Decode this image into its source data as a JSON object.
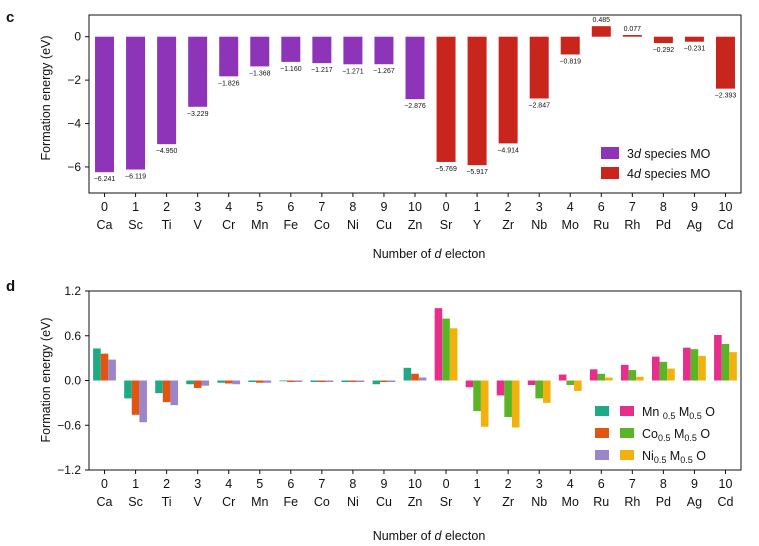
{
  "chart_data": [
    {
      "panel_label": "c",
      "type": "bar",
      "ylabel": "Formation energy (eV)",
      "xlabel_parts": [
        "Number of ",
        "d",
        " electon"
      ],
      "ylim": [
        -7.2,
        1.0
      ],
      "yticks": [
        0,
        -2,
        -4,
        -6
      ],
      "ytick_labels": [
        "0",
        "−2",
        "−4",
        "−6"
      ],
      "categories": [
        "Ca",
        "Sc",
        "Ti",
        "V",
        "Cr",
        "Mn",
        "Fe",
        "Co",
        "Ni",
        "Cu",
        "Zn",
        "Sr",
        "Y",
        "Zr",
        "Nb",
        "Mo",
        "Ru",
        "Rh",
        "Pd",
        "Ag",
        "Cd"
      ],
      "d_electrons": [
        "0",
        "1",
        "2",
        "3",
        "4",
        "5",
        "6",
        "7",
        "8",
        "9",
        "10",
        "0",
        "1",
        "2",
        "3",
        "4",
        "6",
        "7",
        "8",
        "9",
        "10"
      ],
      "values": [
        -6.241,
        -6.119,
        -4.95,
        -3.229,
        -1.826,
        -1.368,
        -1.16,
        -1.217,
        -1.271,
        -1.267,
        -2.876,
        -5.769,
        -5.917,
        -4.914,
        -2.847,
        -0.819,
        0.485,
        0.077,
        -0.292,
        -0.231,
        -2.393
      ],
      "value_labels": [
        "−6.241",
        "−6.119",
        "−4.950",
        "−3.229",
        "−1.826",
        "−1.368",
        "−1.160",
        "−1.217",
        "−1.271",
        "−1.267",
        "−2.876",
        "−5.769",
        "−5.917",
        "−4.914",
        "−2.847",
        "−0.819",
        "0.485",
        "0.077",
        "−0.292",
        "−0.231",
        "−2.393"
      ],
      "bar_series": [
        0,
        0,
        0,
        0,
        0,
        0,
        0,
        0,
        0,
        0,
        0,
        1,
        1,
        1,
        1,
        1,
        1,
        1,
        1,
        1,
        1
      ],
      "series_colors": [
        "#8e34b9",
        "#c8261c"
      ],
      "legend": [
        {
          "parts": [
            "3",
            "d",
            " species MO"
          ]
        },
        {
          "parts": [
            "4",
            "d",
            " species MO"
          ]
        }
      ]
    },
    {
      "panel_label": "d",
      "type": "bar",
      "ylabel": "Formation energy (eV)",
      "xlabel_parts": [
        "Number of ",
        "d",
        " electon"
      ],
      "ylim": [
        -1.2,
        1.2
      ],
      "yticks": [
        1.2,
        0.6,
        0.0,
        -0.6,
        -1.2
      ],
      "ytick_labels": [
        "1.2",
        "0.6",
        "0.0",
        "−0.6",
        "−1.2"
      ],
      "categories": [
        "Ca",
        "Sc",
        "Ti",
        "V",
        "Cr",
        "Mn",
        "Fe",
        "Co",
        "Ni",
        "Cu",
        "Zn",
        "Sr",
        "Y",
        "Zr",
        "Nb",
        "Mo",
        "Ru",
        "Rh",
        "Pd",
        "Ag",
        "Cd"
      ],
      "d_electrons": [
        "0",
        "1",
        "2",
        "3",
        "4",
        "5",
        "6",
        "7",
        "8",
        "9",
        "10",
        "0",
        "1",
        "2",
        "3",
        "4",
        "6",
        "7",
        "8",
        "9",
        "10"
      ],
      "series": [
        {
          "name": "Mn0.5M0.5O",
          "values": [
            0.43,
            -0.24,
            -0.17,
            -0.05,
            -0.03,
            -0.02,
            -0.01,
            -0.02,
            -0.02,
            -0.05,
            0.17,
            0.97,
            -0.09,
            -0.2,
            -0.06,
            0.08,
            0.15,
            0.21,
            0.32,
            0.44,
            0.61
          ],
          "colors": [
            "#1eaa84",
            "#e82e8c"
          ]
        },
        {
          "name": "Co0.5M0.5O",
          "values": [
            0.36,
            -0.46,
            -0.29,
            -0.1,
            -0.04,
            -0.03,
            -0.02,
            -0.02,
            -0.02,
            -0.02,
            0.09,
            0.83,
            -0.41,
            -0.49,
            -0.24,
            -0.06,
            0.09,
            0.14,
            0.25,
            0.42,
            0.49
          ],
          "colors": [
            "#e05512",
            "#5ab526"
          ]
        },
        {
          "name": "Ni0.5M0.5O",
          "values": [
            0.28,
            -0.56,
            -0.33,
            -0.07,
            -0.05,
            -0.03,
            -0.02,
            -0.02,
            -0.02,
            -0.02,
            0.04,
            0.7,
            -0.62,
            -0.63,
            -0.3,
            -0.14,
            0.04,
            0.05,
            0.16,
            0.33,
            0.38
          ],
          "colors": [
            "#9b86cc",
            "#f2b20d"
          ]
        }
      ],
      "legend": [
        {
          "parts": [
            "Mn ",
            "0.5",
            " M",
            "0.5",
            " O"
          ]
        },
        {
          "parts": [
            "Co",
            "0.5",
            " M",
            "0.5",
            " O"
          ]
        },
        {
          "parts": [
            "Ni",
            "0.5",
            " M",
            "0.5",
            " O"
          ]
        }
      ]
    }
  ]
}
